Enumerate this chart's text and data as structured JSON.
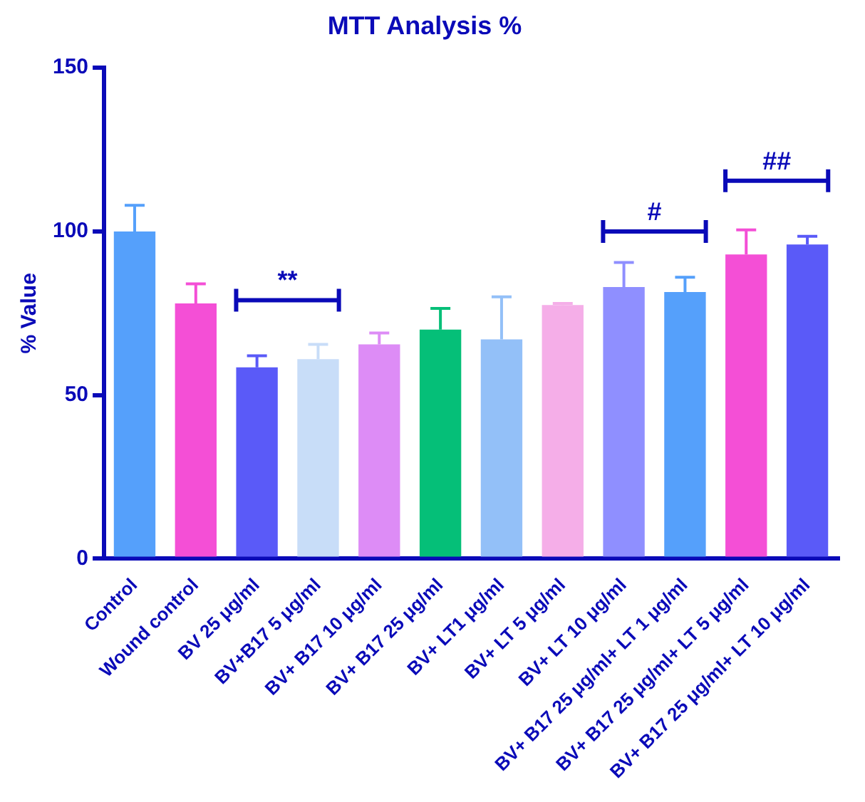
{
  "chart_data": {
    "type": "bar",
    "title": "MTT Analysis %",
    "ylabel": "% Value",
    "categories": [
      "Control",
      "Wound control",
      "BV 25 μg/ml",
      "BV+B17 5 μg/ml",
      "BV+ B17 10 μg/ml",
      "BV+ B17 25 μg/ml",
      "BV+ LT1 μg/ml",
      "BV+ LT 5 μg/ml",
      "BV+ LT 10 μg/ml",
      "BV+ B17 25 μg/ml+ LT 1 μg/ml",
      "BV+ B17 25 μg/ml+ LT 5 μg/ml",
      "BV+ B17 25 μg/ml+ LT 10 μg/ml"
    ],
    "values": [
      100,
      78,
      58.5,
      61,
      65.5,
      70,
      67,
      77.5,
      83,
      81.5,
      93,
      96
    ],
    "errors": [
      [
        100,
        108
      ],
      [
        78,
        84
      ],
      [
        58.5,
        62
      ],
      [
        61,
        65.5
      ],
      [
        65.5,
        69
      ],
      [
        70,
        76.5
      ],
      [
        67,
        80
      ],
      [
        77.5,
        78
      ],
      [
        83,
        90.5
      ],
      [
        81.5,
        86
      ],
      [
        93,
        100.5
      ],
      [
        96,
        98.5
      ]
    ],
    "colors": [
      "#55a0fb",
      "#f44fd6",
      "#5a5af8",
      "#c8ddf8",
      "#dd8cf6",
      "#05bf78",
      "#93c0f8",
      "#f5aee8",
      "#8f8fff",
      "#55a0fb",
      "#f44fd6",
      "#5a5af8"
    ],
    "ylim": [
      0,
      150
    ],
    "yticks": [
      0,
      50,
      100,
      150
    ],
    "grid": false,
    "legend": false,
    "annotations": [
      "**",
      "#",
      "##"
    ]
  }
}
